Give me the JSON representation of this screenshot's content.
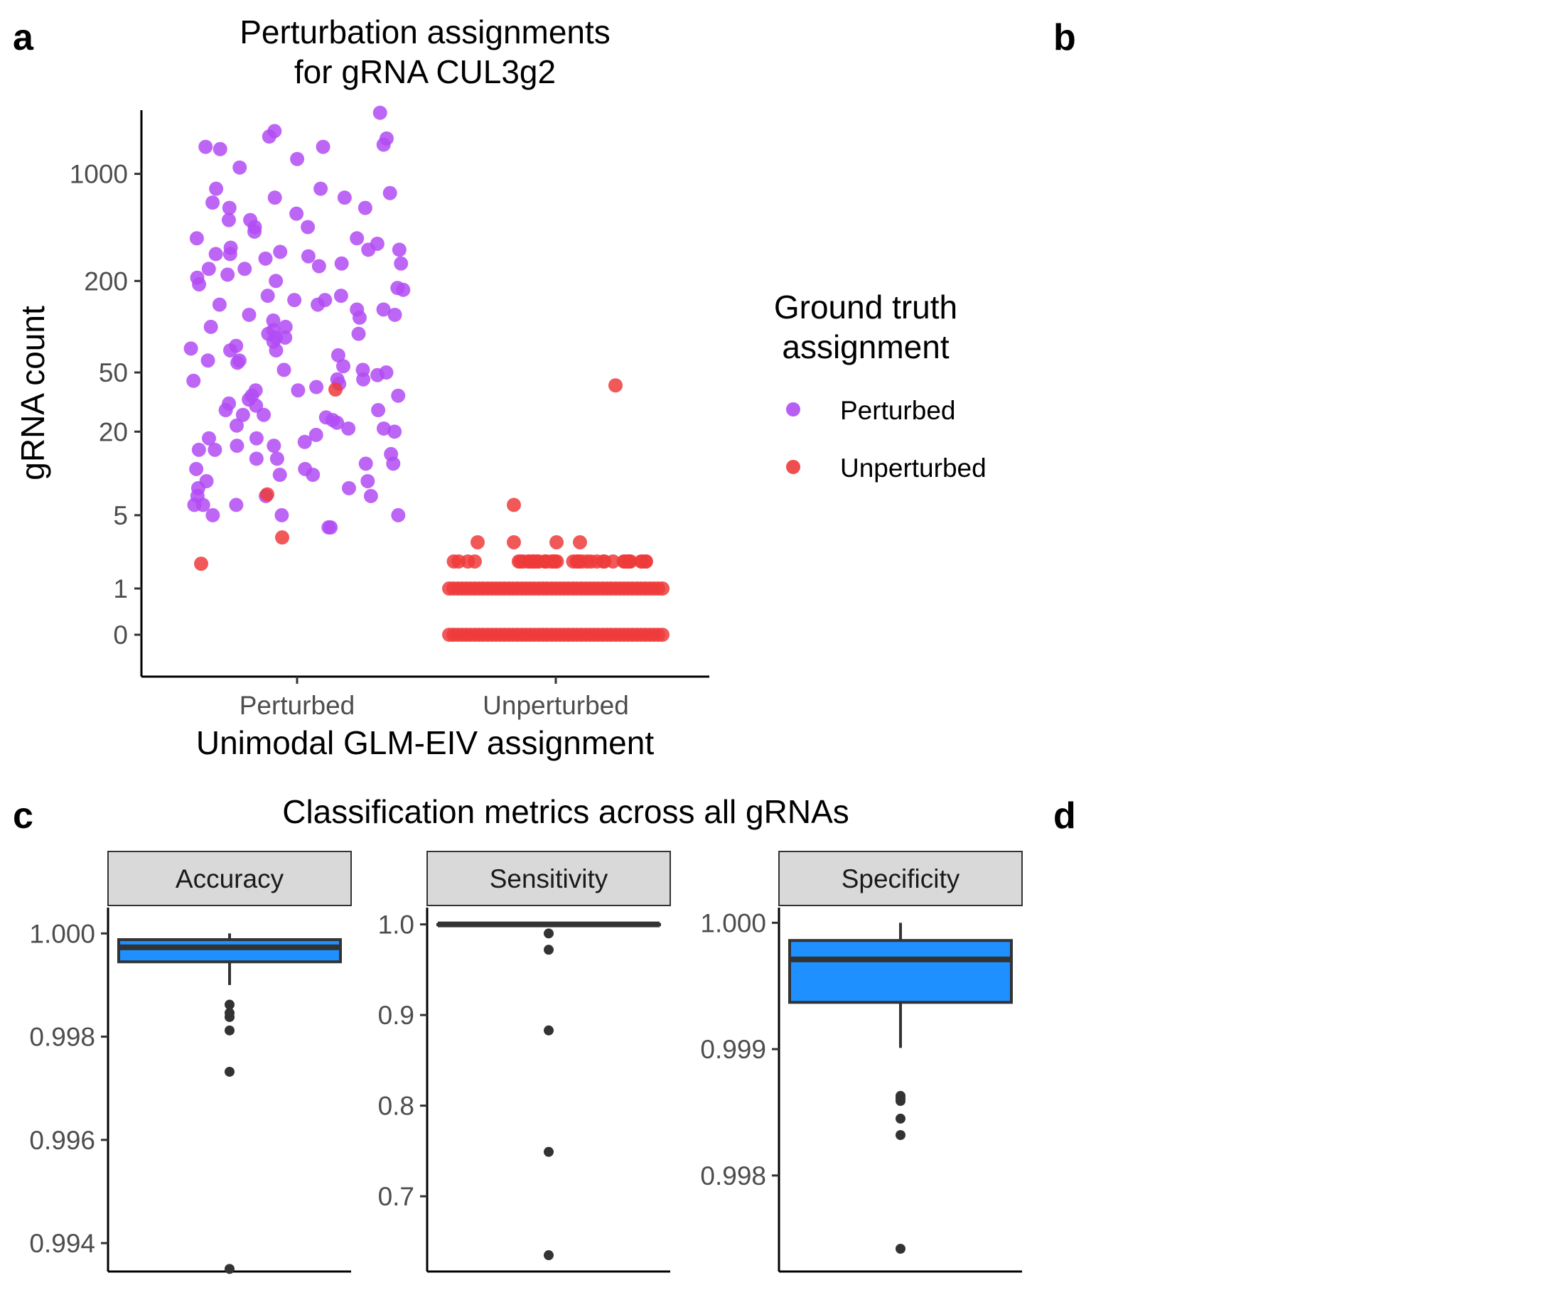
{
  "panel_letters": [
    "a",
    "b",
    "c",
    "d"
  ],
  "colors": {
    "perturbed": "#B24BF3",
    "unperturbed": "#EE3B3B",
    "box_fill": "#1E90FF",
    "box_line": "#333333",
    "strip_fill": "#D9D9D9"
  },
  "chart_data": [
    {
      "type": "scatter",
      "title_lines": [
        "Perturbation assignments",
        "for gRNA CUL3g2"
      ],
      "xlabel": "Unimodal GLM-EIV assignment",
      "ylabel": "gRNA count",
      "categories": [
        "Perturbed",
        "Unperturbed"
      ],
      "y_scale": "log1p",
      "y_ticks": [
        0,
        1,
        5,
        20,
        50,
        200,
        1000
      ],
      "y_tick_labels": [
        "0",
        "1",
        "5",
        "20",
        "50",
        "200",
        "1000"
      ],
      "ylim": [
        0,
        2600
      ],
      "legend": {
        "title_lines": [
          "Ground truth",
          "assignment"
        ],
        "entries": [
          "Perturbed",
          "Unperturbed"
        ],
        "position": "right"
      },
      "perturbed_column": {
        "ground_truth_perturbed": [
          2500,
          1700,
          1500,
          1900,
          1550,
          1450,
          1750,
          1250,
          1500,
          1100,
          800,
          750,
          700,
          600,
          550,
          500,
          650,
          700,
          450,
          420,
          380,
          350,
          330,
          320,
          310,
          300,
          290,
          280,
          260,
          250,
          240,
          220,
          200,
          190,
          175,
          160,
          150,
          140,
          130,
          120,
          110,
          100,
          95,
          90,
          85,
          80,
          75,
          70,
          65,
          60,
          58,
          55,
          52,
          50,
          48,
          45,
          42,
          40,
          38,
          35,
          33,
          30,
          28,
          26,
          25,
          23,
          22,
          21,
          20,
          18,
          17,
          16,
          15,
          14,
          13,
          12,
          11,
          10,
          9,
          8,
          7,
          6,
          5,
          5,
          4,
          4,
          800,
          600,
          500,
          380,
          300,
          260,
          210,
          180,
          150,
          130,
          115,
          100,
          85,
          72,
          60,
          52,
          44,
          38,
          31,
          26,
          21,
          18,
          15,
          12,
          10,
          8,
          7,
          6,
          5,
          90,
          120,
          160,
          70,
          45,
          35,
          28,
          24,
          19,
          16,
          13,
          11,
          9,
          7,
          6,
          140,
          240,
          320,
          450
        ],
        "ground_truth_unperturbed": [
          38.5,
          7.2,
          3.3,
          1.9
        ]
      },
      "unperturbed_column": {
        "ground_truth_unperturbed_levels": [
          0,
          1,
          2,
          3
        ],
        "ground_truth_unperturbed_outliers": [
          6,
          41
        ]
      }
    },
    {
      "type": "box",
      "title": "Classification metrics across all gRNAs",
      "facets": [
        {
          "label": "Accuracy",
          "ylim": [
            0.99345,
            1.0005
          ],
          "y_ticks": [
            0.994,
            0.996,
            0.998,
            1.0
          ],
          "y_tick_labels": [
            "0.994",
            "0.996",
            "0.998",
            "1.000"
          ],
          "whisker_low": 0.999,
          "q1": 0.99945,
          "median": 0.99973,
          "q3": 0.99988,
          "whisker_high": 1.0,
          "outliers": [
            0.99862,
            0.99846,
            0.99838,
            0.99812,
            0.99732,
            0.9935
          ]
        },
        {
          "label": "Sensitivity",
          "ylim": [
            0.617,
            1.0185
          ],
          "y_ticks": [
            0.7,
            0.8,
            0.9,
            1.0
          ],
          "y_tick_labels": [
            "0.7",
            "0.8",
            "0.9",
            "1.0"
          ],
          "whisker_low": 1.0,
          "q1": 1.0,
          "median": 1.0,
          "q3": 1.0,
          "whisker_high": 1.0,
          "outliers": [
            0.99,
            0.972,
            0.883,
            0.749,
            0.635
          ]
        },
        {
          "label": "Specificity",
          "ylim": [
            0.99724,
            1.00012
          ],
          "y_ticks": [
            0.998,
            0.999,
            1.0
          ],
          "y_tick_labels": [
            "0.998",
            "0.999",
            "1.000"
          ],
          "whisker_low": 0.99901,
          "q1": 0.99937,
          "median": 0.99971,
          "q3": 0.99986,
          "whisker_high": 1.0,
          "outliers": [
            0.99863,
            0.99861,
            0.99859,
            0.99845,
            0.99832,
            0.99742
          ]
        }
      ]
    }
  ]
}
